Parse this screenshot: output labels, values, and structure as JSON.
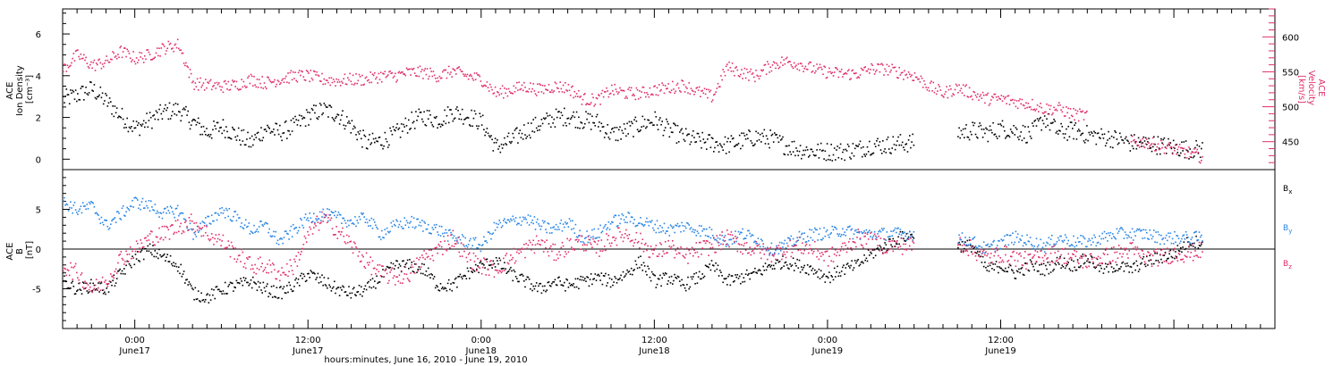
{
  "chart_data": [
    {
      "type": "scatter",
      "panel": "top",
      "ylabel_lines": [
        "ACE",
        "Ion Density",
        "[cm⁻³]"
      ],
      "ylim": [
        -0.5,
        7.2
      ],
      "yticks": [
        0,
        2,
        4,
        6
      ],
      "ylabel_right_lines": [
        "ACE",
        "Velocity",
        "[km/s]"
      ],
      "ylim_right": [
        410,
        640
      ],
      "yticks_right": [
        450,
        500,
        550,
        600
      ],
      "right_axis_color": "#e0306a",
      "x_range_hours": [
        -5,
        79
      ],
      "series": [
        {
          "name": "Ion Density",
          "axis": "left",
          "color": "#000000",
          "x": [
            -5,
            -4,
            -3,
            -2,
            -1,
            0,
            1,
            2,
            3,
            4,
            5,
            6,
            7,
            8,
            9,
            10,
            11,
            12,
            13,
            14,
            15,
            16,
            17,
            18,
            19,
            20,
            21,
            22,
            23,
            24,
            25,
            26,
            27,
            28,
            29,
            30,
            31,
            32,
            33,
            34,
            35,
            36,
            37,
            38,
            39,
            40,
            41,
            42,
            43,
            44,
            45,
            46,
            47,
            48,
            49,
            50,
            51,
            52,
            53,
            54,
            55,
            56,
            57,
            58,
            59,
            60,
            61,
            62,
            63,
            64,
            65,
            66,
            67,
            68,
            69,
            70,
            71,
            72,
            73,
            74
          ],
          "values": [
            2.9,
            3.1,
            3.4,
            2.8,
            2.1,
            1.5,
            1.9,
            2.3,
            2.4,
            1.8,
            1.3,
            1.6,
            1.2,
            0.8,
            1.5,
            1.3,
            1.6,
            2.1,
            2.4,
            2.2,
            1.6,
            0.8,
            0.9,
            1.2,
            1.8,
            2.1,
            1.9,
            2.3,
            2.1,
            1.8,
            0.6,
            0.9,
            1.4,
            1.7,
            2.0,
            2.1,
            1.9,
            1.8,
            1.2,
            1.4,
            1.7,
            1.9,
            1.4,
            1.1,
            0.9,
            0.8,
            0.7,
            0.9,
            1.1,
            1.0,
            0.7,
            0.5,
            0.4,
            0.4,
            0.4,
            0.5,
            0.7,
            0.7,
            0.8,
            0.8,
            null,
            null,
            1.3,
            1.4,
            1.3,
            1.5,
            1.4,
            1.2,
            2.0,
            1.3,
            1.4,
            1.2,
            1.1,
            1.0,
            0.8,
            0.8,
            0.7,
            0.6,
            0.5,
            0.5
          ]
        },
        {
          "name": "Velocity",
          "axis": "right",
          "color": "#e0306a",
          "x": [
            -5,
            -4,
            -3,
            -2,
            -1,
            0,
            1,
            2,
            3,
            4,
            5,
            6,
            7,
            8,
            9,
            10,
            11,
            12,
            13,
            14,
            15,
            16,
            17,
            18,
            19,
            20,
            21,
            22,
            23,
            24,
            25,
            26,
            27,
            28,
            29,
            30,
            31,
            32,
            33,
            34,
            35,
            36,
            37,
            38,
            39,
            40,
            41,
            42,
            43,
            44,
            45,
            46,
            47,
            48,
            49,
            50,
            51,
            52,
            53,
            54,
            55,
            56,
            57,
            58,
            59,
            60,
            61,
            62,
            63,
            64,
            65,
            66,
            67,
            68,
            69,
            70,
            71,
            72,
            73,
            74
          ],
          "values": [
            555,
            575,
            560,
            565,
            580,
            570,
            575,
            585,
            590,
            535,
            532,
            530,
            532,
            540,
            535,
            540,
            545,
            545,
            540,
            538,
            540,
            540,
            545,
            545,
            550,
            550,
            545,
            552,
            545,
            540,
            520,
            525,
            530,
            525,
            530,
            528,
            512,
            510,
            525,
            520,
            520,
            525,
            528,
            532,
            522,
            515,
            558,
            550,
            545,
            560,
            566,
            562,
            555,
            550,
            548,
            548,
            555,
            555,
            550,
            545,
            530,
            520,
            528,
            520,
            512,
            512,
            508,
            505,
            498,
            498,
            490,
            488,
            null,
            null,
            450,
            450,
            445,
            440,
            435,
            428
          ]
        }
      ]
    },
    {
      "type": "scatter",
      "panel": "bottom",
      "ylabel_lines": [
        "ACE",
        "B",
        "[nT]"
      ],
      "ylim": [
        -10,
        10
      ],
      "yticks": [
        -5,
        0,
        5
      ],
      "x_range_hours": [
        -5,
        79
      ],
      "xticks_hours": [
        0,
        12,
        24,
        36,
        48,
        60
      ],
      "xtick_labels_top": [
        "0:00",
        "12:00",
        "0:00",
        "12:00",
        "0:00",
        "12:00"
      ],
      "xtick_labels_bottom": [
        "June17",
        "June17",
        "June18",
        "June18",
        "June19",
        "June19"
      ],
      "xlabel": "hours:minutes, June 16, 2010 - June 19, 2010",
      "legend_position": "right",
      "series": [
        {
          "name": "B",
          "subscript": "x",
          "color": "#000000",
          "x": [
            -5,
            -4,
            -3,
            -2,
            -1,
            0,
            1,
            2,
            3,
            4,
            5,
            6,
            7,
            8,
            9,
            10,
            11,
            12,
            13,
            14,
            15,
            16,
            17,
            18,
            19,
            20,
            21,
            22,
            23,
            24,
            25,
            26,
            27,
            28,
            29,
            30,
            31,
            32,
            33,
            34,
            35,
            36,
            37,
            38,
            39,
            40,
            41,
            42,
            43,
            44,
            45,
            46,
            47,
            48,
            49,
            50,
            51,
            52,
            53,
            54,
            55,
            56,
            57,
            58,
            59,
            60,
            61,
            62,
            63,
            64,
            65,
            66,
            67,
            68,
            69,
            70,
            71,
            72,
            73,
            74
          ],
          "values": [
            -4,
            -5,
            -4.5,
            -5,
            -3,
            -1,
            0,
            -1,
            -2,
            -5.5,
            -6,
            -5,
            -4.5,
            -4,
            -5,
            -5.5,
            -4.5,
            -3,
            -4,
            -5,
            -5.5,
            -5,
            -3.5,
            -2,
            -2,
            -2.5,
            -4.5,
            -4.5,
            -3,
            -2,
            -1.5,
            -3,
            -4,
            -5,
            -4,
            -4.5,
            -4,
            -3.5,
            -4,
            -3,
            -1.5,
            -4,
            -3.5,
            -4.5,
            -3.5,
            -2,
            -4,
            -3.5,
            -3,
            -2,
            -1.5,
            -2,
            -2.5,
            -3.5,
            -2.5,
            -2,
            -0.5,
            0.5,
            1.5,
            2,
            null,
            null,
            0.5,
            0.5,
            -2.5,
            -2,
            -3,
            -2,
            -2.5,
            -1.5,
            -2,
            -1,
            -2.5,
            -2,
            -2.5,
            -1.5,
            -1,
            -0.5,
            1,
            1
          ]
        },
        {
          "name": "B",
          "subscript": "y",
          "color": "#2a86e6",
          "x": [
            -5,
            -4,
            -3,
            -2,
            -1,
            0,
            1,
            2,
            3,
            4,
            5,
            6,
            7,
            8,
            9,
            10,
            11,
            12,
            13,
            14,
            15,
            16,
            17,
            18,
            19,
            20,
            21,
            22,
            23,
            24,
            25,
            26,
            27,
            28,
            29,
            30,
            31,
            32,
            33,
            34,
            35,
            36,
            37,
            38,
            39,
            40,
            41,
            42,
            43,
            44,
            45,
            46,
            47,
            48,
            49,
            50,
            51,
            52,
            53,
            54,
            55,
            56,
            57,
            58,
            59,
            60,
            61,
            62,
            63,
            64,
            65,
            66,
            67,
            68,
            69,
            70,
            71,
            72,
            73,
            74
          ],
          "values": [
            6,
            5,
            5.5,
            3,
            4.5,
            6,
            5.5,
            4.5,
            5,
            2,
            3.5,
            5,
            4,
            2.5,
            3,
            1,
            2.5,
            4,
            4.5,
            4,
            3.5,
            4,
            2,
            3,
            3.5,
            3,
            2.5,
            1.5,
            1,
            0.5,
            3,
            3.5,
            4,
            3,
            2.5,
            3.5,
            1.5,
            2,
            3.5,
            4,
            3.5,
            3,
            2.5,
            3,
            2.5,
            2,
            1,
            2,
            1.5,
            0,
            0.5,
            1.5,
            2,
            2,
            2.5,
            2,
            2,
            2,
            2,
            2,
            null,
            null,
            1.5,
            1,
            0,
            1,
            1.5,
            1,
            0.5,
            1.5,
            1,
            1,
            1.5,
            2,
            2,
            2,
            1.5,
            1.5,
            1.5,
            1.5
          ]
        },
        {
          "name": "B",
          "subscript": "z",
          "color": "#e0306a",
          "x": [
            -5,
            -4,
            -3,
            -2,
            -1,
            0,
            1,
            2,
            3,
            4,
            5,
            6,
            7,
            8,
            9,
            10,
            11,
            12,
            13,
            14,
            15,
            16,
            17,
            18,
            19,
            20,
            21,
            22,
            23,
            24,
            25,
            26,
            27,
            28,
            29,
            30,
            31,
            32,
            33,
            34,
            35,
            36,
            37,
            38,
            39,
            40,
            41,
            42,
            43,
            44,
            45,
            46,
            47,
            48,
            49,
            50,
            51,
            52,
            53,
            54,
            55,
            56,
            57,
            58,
            59,
            60,
            61,
            62,
            63,
            64,
            65,
            66,
            67,
            68,
            69,
            70,
            71,
            72,
            73,
            74
          ],
          "values": [
            -2,
            -3,
            -5,
            -4,
            -1,
            0,
            1.5,
            2,
            3,
            3.5,
            2,
            1,
            -0.5,
            -2,
            -2,
            -3,
            -2,
            2,
            4,
            2.5,
            0.5,
            -1.5,
            -3,
            -3.5,
            -3,
            -1,
            0,
            1.5,
            -1,
            -2,
            -2.5,
            -1,
            0,
            1,
            -0.5,
            0.5,
            1,
            0,
            1.5,
            2,
            1,
            -0.5,
            0.5,
            -1,
            0,
            0.5,
            1.5,
            0.5,
            0,
            -0.5,
            0,
            0.5,
            0,
            -1,
            0,
            1.5,
            1,
            0.5,
            0.5,
            0.5,
            null,
            null,
            1,
            0,
            -1,
            -0.5,
            -1,
            -1.5,
            -0.5,
            -0.5,
            -1,
            -1.5,
            -1,
            -0.5,
            0,
            -1,
            -1,
            -0.5,
            -0.5,
            0
          ]
        }
      ]
    }
  ]
}
